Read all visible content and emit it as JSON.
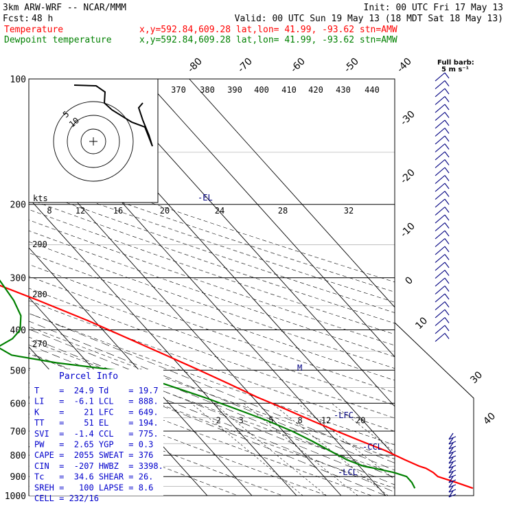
{
  "header": {
    "model": "3km ARW-WRF -- NCAR/MMM",
    "init": "Init: 00 UTC Fri 17 May 13",
    "fcst_label": "Fcst:",
    "fcst_hours": "48 h",
    "valid": "Valid: 00 UTC Sun 19 May 13 (18 MDT Sat 18 May 13)",
    "temp_label": "Temperature",
    "temp_info": "x,y=592.84,609.28   lat,lon= 41.99, -93.62  stn=AMW",
    "dew_label": "Dewpoint temperature",
    "dew_info": "x,y=592.84,609.28   lat,lon= 41.99, -93.62  stn=AMW"
  },
  "colors": {
    "temperature": "#ff0000",
    "dewpoint": "#008000",
    "parcel_text": "#0000cc",
    "axes": "#000000"
  },
  "barb_legend": {
    "title": "Full barb:",
    "value": "5 m s⁻¹"
  },
  "hodograph": {
    "units": "kts",
    "speed_ticks": [
      "8",
      "12",
      "16",
      "20",
      "24",
      "28",
      "32"
    ],
    "ring_labels": [
      "5",
      "10"
    ]
  },
  "level_markers": [
    "-EL",
    "-LFC",
    "-CCL",
    "-LCL",
    "M"
  ],
  "parcel_info": {
    "title": "Parcel Info",
    "rows": [
      [
        "T",
        "24.9",
        "Td",
        "19.7"
      ],
      [
        "LI",
        "-6.1",
        "LCL",
        "888."
      ],
      [
        "K",
        "21",
        "LFC",
        "649."
      ],
      [
        "TT",
        "51",
        "EL",
        "194."
      ],
      [
        "SVI",
        "-1.4",
        "CCL",
        "775."
      ],
      [
        "PW",
        "2.65",
        "YGP",
        "0.3"
      ],
      [
        "CAPE",
        "2055",
        "SWEAT",
        "376"
      ],
      [
        "CIN",
        "-207",
        "HWBZ",
        "3398."
      ],
      [
        "Tc",
        "34.6",
        "SHEAR",
        "26."
      ],
      [
        "SREH",
        "100",
        "LAPSE",
        "8.6"
      ],
      [
        "CELL",
        "232/16",
        "",
        ""
      ]
    ]
  },
  "chart_data": {
    "type": "line",
    "title": "",
    "xlabel": "",
    "ylabel": "",
    "y_scale": "log",
    "ylim": [
      1000,
      100
    ],
    "pressure_ticks": [
      100,
      200,
      300,
      400,
      500,
      600,
      700,
      800,
      900,
      1000
    ],
    "isotherm_labels": [
      "-80",
      "-70",
      "-60",
      "-50",
      "-40",
      "-30",
      "-20",
      "-10",
      "0",
      "10",
      "30",
      "40"
    ],
    "theta_labels_top": [
      "370",
      "380",
      "390",
      "400",
      "410",
      "420",
      "430",
      "440"
    ],
    "theta_labels_side": [
      "290",
      "280",
      "270"
    ],
    "mixing_ratio_labels": [
      "2",
      "3",
      "5",
      "8",
      "12",
      "20"
    ],
    "series": [
      {
        "name": "Temperature",
        "pressure": [
          960,
          930,
          900,
          880,
          860,
          850,
          820,
          780,
          740,
          700,
          660,
          620,
          580,
          540,
          500,
          460,
          420,
          380,
          340,
          300,
          270,
          240,
          220,
          200,
          190,
          175,
          160,
          145,
          130,
          118,
          108,
          100
        ],
        "temperature_c": [
          31.0,
          28.5,
          25.5,
          25.3,
          24.5,
          23.5,
          21.5,
          19.0,
          15.5,
          12.0,
          8.5,
          5.0,
          1.0,
          -2.5,
          -6.5,
          -11.0,
          -16.0,
          -21.5,
          -28.5,
          -37.0,
          -44.0,
          -51.0,
          -55.5,
          -59.0,
          -59.5,
          -59.0,
          -58.5,
          -58.5,
          -59.5,
          -60.5,
          -61.0,
          -61.5
        ]
      },
      {
        "name": "Dewpoint temperature",
        "pressure": [
          960,
          930,
          900,
          880,
          860,
          850,
          820,
          800,
          780,
          740,
          700,
          660,
          620,
          580,
          540,
          500,
          480,
          460,
          440,
          420,
          400,
          370,
          340,
          300,
          270,
          240,
          210,
          190,
          175,
          160,
          145,
          130,
          115,
          100
        ],
        "temperature_c": [
          18.0,
          18.5,
          18.5,
          16.5,
          13.0,
          11.0,
          8.5,
          7.5,
          6.5,
          4.5,
          2.0,
          -1.5,
          -6.0,
          -11.0,
          -17.0,
          -25.0,
          -37.0,
          -45.5,
          -47.0,
          -42.0,
          -38.5,
          -35.5,
          -34.0,
          -33.0,
          -31.0,
          -32.5,
          -37.0,
          -41.5,
          -46.0,
          -46.5,
          -49.5,
          -54.5,
          -60.0,
          -65.0
        ]
      }
    ]
  }
}
